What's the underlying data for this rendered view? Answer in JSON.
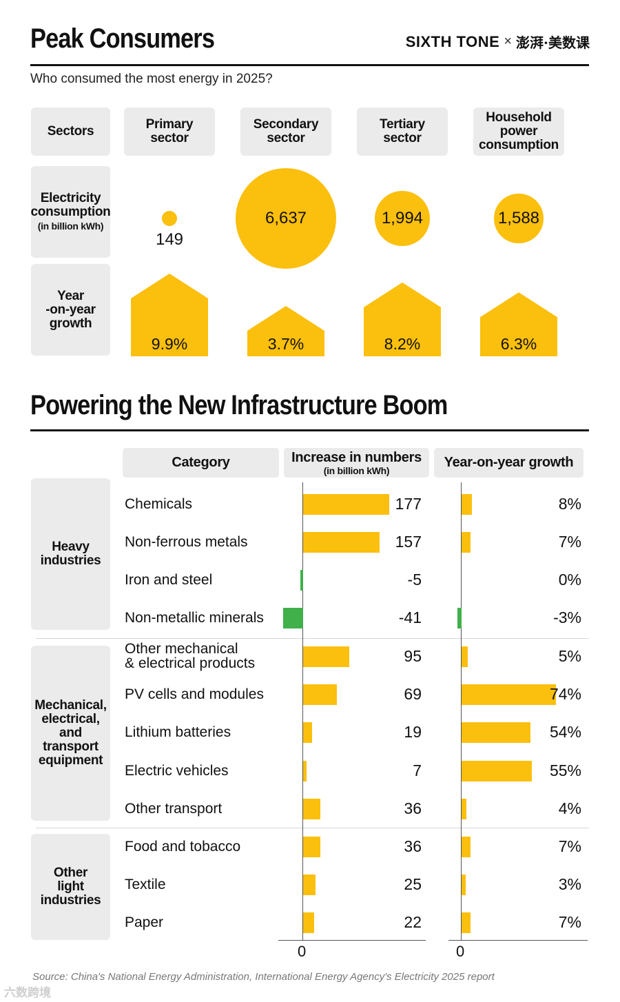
{
  "header": {
    "title": "Peak Consumers",
    "brand_left": "SIXTH TONE",
    "brand_x": "×",
    "brand_right": "澎湃·美数课",
    "subtitle": "Who consumed the most energy in 2025?"
  },
  "section1": {
    "row_headers": {
      "sectors": "Sectors",
      "electricity_line1": "Electricity",
      "electricity_line2": "consumption",
      "electricity_unit": "(in billion kWh)",
      "growth_line1": "Year",
      "growth_line2": "-on-year",
      "growth_line3": "growth"
    },
    "sectors": [
      {
        "line1": "Primary",
        "line2": "sector",
        "line3": ""
      },
      {
        "line1": "Secondary",
        "line2": "sector",
        "line3": ""
      },
      {
        "line1": "Tertiary",
        "line2": "sector",
        "line3": ""
      },
      {
        "line1": "Household",
        "line2": "power",
        "line3": "consumption"
      }
    ]
  },
  "section2": {
    "title": "Powering the New Infrastructure Boom",
    "col_category": "Category",
    "col_increase": "Increase in numbers",
    "col_increase_unit": "(in billion kWh)",
    "col_growth": "Year-on-year growth",
    "groups": [
      {
        "line1": "Heavy",
        "line2": "industries",
        "line3": "",
        "line4": "",
        "line5": ""
      },
      {
        "line1": "Mechanical,",
        "line2": "electrical,",
        "line3": "and",
        "line4": "transport",
        "line5": "equipment"
      },
      {
        "line1": "Other",
        "line2": "light",
        "line3": "industries",
        "line4": "",
        "line5": ""
      }
    ],
    "axis_zero_left": "0",
    "axis_zero_right": "0"
  },
  "chart_data": [
    {
      "type": "bubble",
      "title": "Peak Consumers",
      "categories": [
        "Primary sector",
        "Secondary sector",
        "Tertiary sector",
        "Household power consumption"
      ],
      "series": [
        {
          "name": "Electricity consumption (in billion kWh)",
          "values": [
            149,
            6637,
            1994,
            1588
          ],
          "labels": [
            "149",
            "6,637",
            "1,994",
            "1,588"
          ]
        },
        {
          "name": "Year-on-year growth",
          "values": [
            9.9,
            3.7,
            8.2,
            6.3
          ],
          "labels": [
            "9.9%",
            "3.7%",
            "8.2%",
            "6.3%"
          ]
        }
      ]
    },
    {
      "type": "bar",
      "title": "Powering the New Infrastructure Boom",
      "categories": [
        "Chemicals",
        "Non-ferrous metals",
        "Iron and steel",
        "Non-metallic minerals",
        "Other mechanical & electrical products",
        "PV cells and modules",
        "Lithium batteries",
        "Electric vehicles",
        "Other transport",
        "Food and tobacco",
        "Textile",
        "Paper"
      ],
      "category_lines": [
        [
          "Chemicals"
        ],
        [
          "Non-ferrous metals"
        ],
        [
          "Iron and steel"
        ],
        [
          "Non-metallic minerals"
        ],
        [
          "Other mechanical",
          "& electrical products"
        ],
        [
          "PV cells and modules"
        ],
        [
          "Lithium batteries"
        ],
        [
          "Electric vehicles"
        ],
        [
          "Other transport"
        ],
        [
          "Food and tobacco"
        ],
        [
          "Textile"
        ],
        [
          "Paper"
        ]
      ],
      "series": [
        {
          "name": "Increase in numbers (in billion kWh)",
          "values": [
            177,
            157,
            -5,
            -41,
            95,
            69,
            19,
            7,
            36,
            36,
            25,
            22
          ],
          "labels": [
            "177",
            "157",
            "-5",
            "-41",
            "95",
            "69",
            "19",
            "7",
            "36",
            "36",
            "25",
            "22"
          ]
        },
        {
          "name": "Year-on-year growth",
          "values": [
            8,
            7,
            0,
            -3,
            5,
            74,
            54,
            55,
            4,
            7,
            3,
            7
          ],
          "labels": [
            "8%",
            "7%",
            "0%",
            "-3%",
            "5%",
            "74%",
            "54%",
            "55%",
            "4%",
            "7%",
            "3%",
            "7%"
          ]
        }
      ],
      "groups": [
        {
          "name": "Heavy industries",
          "range": [
            0,
            3
          ]
        },
        {
          "name": "Mechanical, electrical, and transport equipment",
          "range": [
            4,
            8
          ]
        },
        {
          "name": "Other light industries",
          "range": [
            9,
            11
          ]
        }
      ],
      "colors": {
        "positive": "#fbbf0d",
        "negative": "#3fb04a"
      }
    }
  ],
  "footer": {
    "source": "Source: China's National Energy Administration, International Energy Agency's Electricity 2025 report",
    "watermark": "六数跨境"
  }
}
